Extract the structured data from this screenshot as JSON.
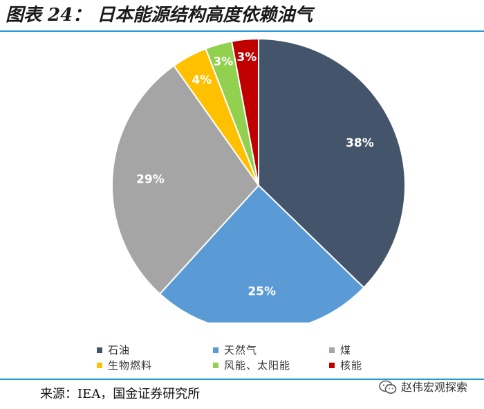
{
  "figure_title": "图表 24：  日本能源结构高度依赖油气",
  "source_note": "来源：IEA，国金证券研究所",
  "watermark_text": "赵伟宏观探索",
  "chart_data": {
    "type": "pie",
    "title": "",
    "slices": [
      {
        "label": "石油",
        "value": 38,
        "display": "38%",
        "color": "#44546a"
      },
      {
        "label": "天然气",
        "value": 25,
        "display": "25%",
        "color": "#5b9bd5"
      },
      {
        "label": "煤",
        "value": 29,
        "display": "29%",
        "color": "#a5a5a5"
      },
      {
        "label": "生物燃料",
        "value": 4,
        "display": "4%",
        "color": "#ffc000"
      },
      {
        "label": "风能、太阳能",
        "value": 3,
        "display": "3%",
        "color": "#92d050"
      },
      {
        "label": "核能",
        "value": 3,
        "display": "3%",
        "color": "#c00000"
      }
    ],
    "legend_position": "bottom"
  }
}
